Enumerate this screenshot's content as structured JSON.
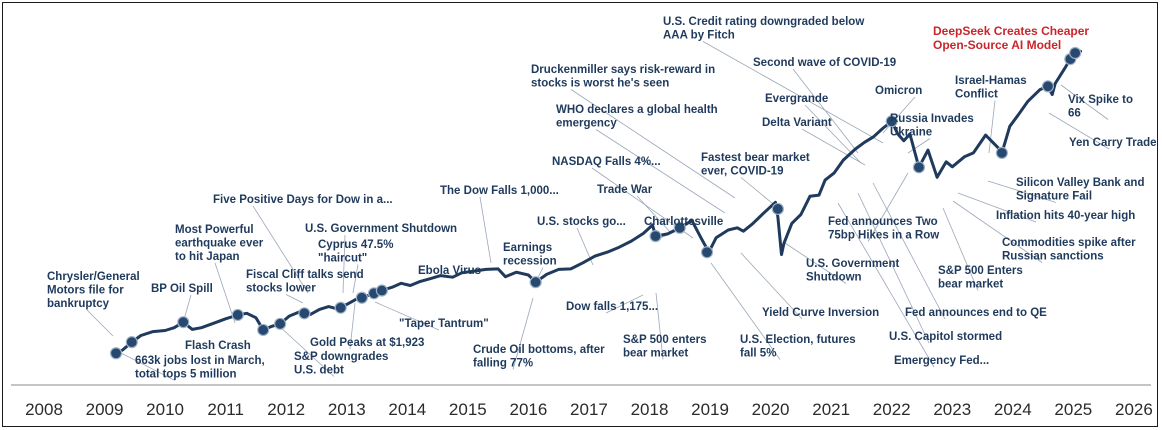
{
  "chart_data": {
    "type": "line",
    "title": "",
    "xlabel": "",
    "ylabel": "",
    "xlim": [
      2008,
      2026
    ],
    "x_ticks": [
      "2008",
      "2009",
      "2010",
      "2011",
      "2012",
      "2013",
      "2014",
      "2015",
      "2016",
      "2017",
      "2018",
      "2019",
      "2020",
      "2021",
      "2022",
      "2023",
      "2024",
      "2025",
      "2026"
    ],
    "grid": false,
    "y_axis_values_shown": false,
    "colors": {
      "line": "#1f3a5c",
      "annotation_text": "#1f3a5c",
      "highlight_text": "#c8262c",
      "marker": "#27496f"
    },
    "series": [
      {
        "name": "",
        "points": [
          [
            2009.19,
            5.0
          ],
          [
            2009.3,
            5.6
          ],
          [
            2009.45,
            7.0
          ],
          [
            2009.6,
            8.2
          ],
          [
            2009.8,
            8.9
          ],
          [
            2010.0,
            9.1
          ],
          [
            2010.15,
            9.6
          ],
          [
            2010.3,
            10.6
          ],
          [
            2010.45,
            9.3
          ],
          [
            2010.6,
            9.6
          ],
          [
            2010.8,
            10.4
          ],
          [
            2011.0,
            11.2
          ],
          [
            2011.2,
            11.9
          ],
          [
            2011.35,
            12.2
          ],
          [
            2011.5,
            11.4
          ],
          [
            2011.62,
            9.2
          ],
          [
            2011.75,
            9.8
          ],
          [
            2011.9,
            10.3
          ],
          [
            2012.05,
            11.7
          ],
          [
            2012.25,
            12.6
          ],
          [
            2012.4,
            12.0
          ],
          [
            2012.55,
            12.9
          ],
          [
            2012.7,
            13.4
          ],
          [
            2012.85,
            13.0
          ],
          [
            2013.0,
            13.8
          ],
          [
            2013.15,
            14.7
          ],
          [
            2013.3,
            15.2
          ],
          [
            2013.45,
            15.8
          ],
          [
            2013.6,
            16.4
          ],
          [
            2013.75,
            16.9
          ],
          [
            2013.9,
            17.6
          ],
          [
            2014.05,
            17.2
          ],
          [
            2014.2,
            17.9
          ],
          [
            2014.4,
            18.5
          ],
          [
            2014.55,
            19.0
          ],
          [
            2014.75,
            18.7
          ],
          [
            2014.9,
            19.5
          ],
          [
            2015.1,
            19.8
          ],
          [
            2015.3,
            20.1
          ],
          [
            2015.5,
            20.2
          ],
          [
            2015.62,
            18.8
          ],
          [
            2015.8,
            19.6
          ],
          [
            2016.0,
            19.1
          ],
          [
            2016.12,
            17.8
          ],
          [
            2016.3,
            19.2
          ],
          [
            2016.5,
            20.1
          ],
          [
            2016.7,
            20.2
          ],
          [
            2016.9,
            21.3
          ],
          [
            2017.1,
            22.5
          ],
          [
            2017.3,
            23.2
          ],
          [
            2017.5,
            24.1
          ],
          [
            2017.7,
            25.2
          ],
          [
            2017.9,
            26.6
          ],
          [
            2018.05,
            28.1
          ],
          [
            2018.1,
            26.1
          ],
          [
            2018.3,
            26.5
          ],
          [
            2018.5,
            27.6
          ],
          [
            2018.7,
            28.9
          ],
          [
            2018.85,
            25.8
          ],
          [
            2018.98,
            23.2
          ],
          [
            2019.1,
            25.8
          ],
          [
            2019.3,
            27.2
          ],
          [
            2019.45,
            27.6
          ],
          [
            2019.55,
            27.0
          ],
          [
            2019.7,
            28.3
          ],
          [
            2019.9,
            30.4
          ],
          [
            2020.08,
            32.2
          ],
          [
            2020.12,
            29.5
          ],
          [
            2020.18,
            22.8
          ],
          [
            2020.22,
            24.8
          ],
          [
            2020.35,
            28.4
          ],
          [
            2020.5,
            30.0
          ],
          [
            2020.65,
            33.3
          ],
          [
            2020.8,
            33.5
          ],
          [
            2020.9,
            36.2
          ],
          [
            2021.05,
            37.5
          ],
          [
            2021.2,
            39.8
          ],
          [
            2021.4,
            41.8
          ],
          [
            2021.55,
            43.0
          ],
          [
            2021.7,
            44.0
          ],
          [
            2021.85,
            45.5
          ],
          [
            2022.0,
            46.8
          ],
          [
            2022.1,
            44.5
          ],
          [
            2022.2,
            43.3
          ],
          [
            2022.3,
            44.5
          ],
          [
            2022.45,
            38.5
          ],
          [
            2022.6,
            41.6
          ],
          [
            2022.75,
            36.7
          ],
          [
            2022.9,
            39.5
          ],
          [
            2023.0,
            38.6
          ],
          [
            2023.2,
            40.4
          ],
          [
            2023.35,
            41.1
          ],
          [
            2023.55,
            44.3
          ],
          [
            2023.75,
            42.1
          ],
          [
            2023.82,
            41.1
          ],
          [
            2023.95,
            45.9
          ],
          [
            2024.1,
            48.1
          ],
          [
            2024.25,
            50.4
          ],
          [
            2024.45,
            52.5
          ],
          [
            2024.58,
            53.1
          ],
          [
            2024.65,
            51.6
          ],
          [
            2024.7,
            53.6
          ],
          [
            2024.85,
            56.2
          ],
          [
            2024.95,
            58.0
          ],
          [
            2025.03,
            59.1
          ],
          [
            2025.12,
            59.4
          ]
        ]
      }
    ],
    "markers": [
      {
        "x": 2009.19,
        "y": 5.0
      },
      {
        "x": 2009.45,
        "y": 7.0
      },
      {
        "x": 2010.3,
        "y": 10.6
      },
      {
        "x": 2011.2,
        "y": 11.9
      },
      {
        "x": 2011.62,
        "y": 9.2
      },
      {
        "x": 2011.9,
        "y": 10.3
      },
      {
        "x": 2012.3,
        "y": 12.2
      },
      {
        "x": 2012.9,
        "y": 13.2
      },
      {
        "x": 2013.25,
        "y": 15.0
      },
      {
        "x": 2013.45,
        "y": 15.8
      },
      {
        "x": 2013.58,
        "y": 16.3
      },
      {
        "x": 2016.12,
        "y": 17.8
      },
      {
        "x": 2018.1,
        "y": 26.1
      },
      {
        "x": 2018.5,
        "y": 27.6
      },
      {
        "x": 2018.95,
        "y": 23.2
      },
      {
        "x": 2020.12,
        "y": 31.0
      },
      {
        "x": 2022.0,
        "y": 46.8
      },
      {
        "x": 2022.45,
        "y": 38.5
      },
      {
        "x": 2023.82,
        "y": 41.1
      },
      {
        "x": 2024.58,
        "y": 53.1
      },
      {
        "x": 2024.95,
        "y": 58.0
      },
      {
        "x": 2025.03,
        "y": 59.1
      }
    ],
    "annotations": [
      {
        "lines": [
          "Chrysler/General",
          "Motors file for",
          "bankruptcy"
        ]
      },
      {
        "lines": [
          "BP Oil Spill"
        ]
      },
      {
        "lines": [
          "Most Powerful",
          "earthquake ever",
          "to hit Japan"
        ]
      },
      {
        "lines": [
          "Flash Crash"
        ]
      },
      {
        "lines": [
          "663k jobs lost in March,",
          "total tops 5 million"
        ]
      },
      {
        "lines": [
          "Fiscal Cliff talks send",
          "stocks lower"
        ]
      },
      {
        "lines": [
          "Five Positive Days for Dow in a..."
        ]
      },
      {
        "lines": [
          "U.S. Government Shutdown"
        ]
      },
      {
        "lines": [
          "Cyprus 47.5%",
          "\"haircut\""
        ]
      },
      {
        "lines": [
          "Gold Peaks at $1,923"
        ]
      },
      {
        "lines": [
          "S&P downgrades",
          "U.S. debt"
        ]
      },
      {
        "lines": [
          "\"Taper Tantrum\""
        ]
      },
      {
        "lines": [
          "Ebola Virus"
        ]
      },
      {
        "lines": [
          "The Dow Falls 1,000..."
        ]
      },
      {
        "lines": [
          "Earnings",
          "recession"
        ]
      },
      {
        "lines": [
          "Crude Oil bottoms, after",
          "falling 77%"
        ]
      },
      {
        "lines": [
          "U.S. stocks go..."
        ]
      },
      {
        "lines": [
          "Charlottesville"
        ]
      },
      {
        "lines": [
          "Trade War"
        ]
      },
      {
        "lines": [
          "Dow falls 1,175..."
        ]
      },
      {
        "lines": [
          "S&P 500 enters",
          "bear market"
        ]
      },
      {
        "lines": [
          "NASDAQ Falls 4%..."
        ]
      },
      {
        "lines": [
          "WHO declares a global health",
          "emergency"
        ]
      },
      {
        "lines": [
          "Druckenmiller says risk-reward in",
          "stocks is worst he's seen"
        ]
      },
      {
        "lines": [
          "Fastest bear market",
          "ever, COVID-19"
        ]
      },
      {
        "lines": [
          "U.S. Election, futures",
          "fall 5%"
        ]
      },
      {
        "lines": [
          "Yield Curve Inversion"
        ]
      },
      {
        "lines": [
          "U.S. Government",
          "Shutdown"
        ]
      },
      {
        "lines": [
          "U.S. Credit rating downgraded below",
          "AAA by Fitch"
        ]
      },
      {
        "lines": [
          "Second wave of COVID-19"
        ]
      },
      {
        "lines": [
          "Evergrande"
        ]
      },
      {
        "lines": [
          "Delta Variant"
        ]
      },
      {
        "lines": [
          "Omicron"
        ]
      },
      {
        "lines": [
          "Russia Invades",
          "Ukraine"
        ]
      },
      {
        "lines": [
          "Fed announces Two",
          "75bp Hikes in a Row"
        ]
      },
      {
        "lines": [
          "Fed announces end to QE"
        ]
      },
      {
        "lines": [
          "U.S. Capitol stormed"
        ]
      },
      {
        "lines": [
          "Emergency Fed..."
        ]
      },
      {
        "lines": [
          "DeepSeek Creates Cheaper",
          "Open-Source AI Model"
        ],
        "highlight": true
      },
      {
        "lines": [
          "Israel-Hamas",
          "Conflict"
        ]
      },
      {
        "lines": [
          "Vix Spike to",
          "66"
        ]
      },
      {
        "lines": [
          "Yen Carry Trade"
        ]
      },
      {
        "lines": [
          "Silicon Valley Bank and",
          "Signature Fail"
        ]
      },
      {
        "lines": [
          "Inflation hits 40-year high"
        ]
      },
      {
        "lines": [
          "Commodities spike after",
          "Russian sanctions"
        ]
      },
      {
        "lines": [
          "S&P 500 Enters",
          "bear market"
        ]
      }
    ]
  }
}
